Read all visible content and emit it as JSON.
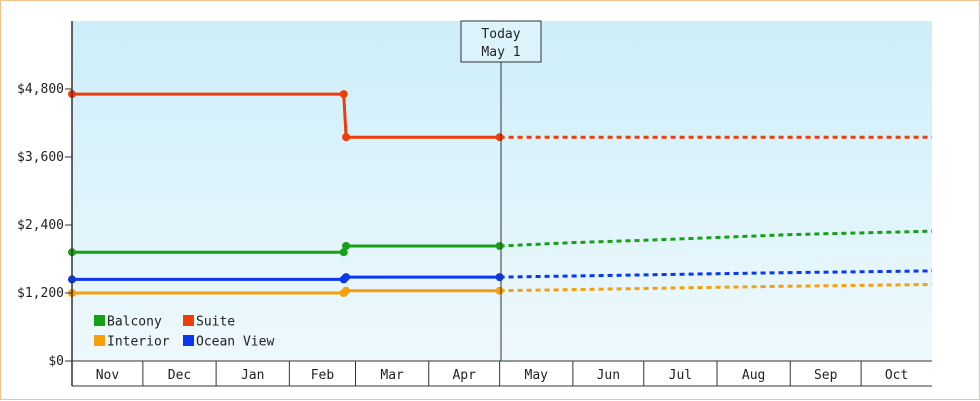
{
  "chart_data": {
    "type": "line",
    "title": "",
    "xlabel": "",
    "ylabel": "",
    "ylim": [
      0,
      6000
    ],
    "y_ticks": [
      {
        "value": 0,
        "label": "$0"
      },
      {
        "value": 1200,
        "label": "$1,200"
      },
      {
        "value": 2400,
        "label": "$2,400"
      },
      {
        "value": 3600,
        "label": "$3,600"
      },
      {
        "value": 4800,
        "label": "$4,800"
      }
    ],
    "x_range": [
      "2022-11-01",
      "2023-10-31"
    ],
    "months": [
      "Nov",
      "Dec",
      "Jan",
      "Feb",
      "Mar",
      "Apr",
      "May",
      "Jun",
      "Jul",
      "Aug",
      "Sep",
      "Oct"
    ],
    "today": {
      "date": "2023-05-01",
      "label_line1": "Today",
      "label_line2": "May 1"
    },
    "grid": false,
    "legend_position": "bottom-left",
    "series": [
      {
        "name": "Balcony",
        "color": "#16a016",
        "history": [
          [
            "2022-11-01",
            1920
          ],
          [
            "2023-02-24",
            1920
          ],
          [
            "2023-02-25",
            2030
          ],
          [
            "2023-05-01",
            2030
          ]
        ],
        "forecast": [
          [
            "2023-05-01",
            2030
          ],
          [
            "2023-06-01",
            2090
          ],
          [
            "2023-07-01",
            2130
          ],
          [
            "2023-08-01",
            2180
          ],
          [
            "2023-09-01",
            2230
          ],
          [
            "2023-10-31",
            2290
          ]
        ]
      },
      {
        "name": "Suite",
        "color": "#f03c0a",
        "history": [
          [
            "2022-11-01",
            4710
          ],
          [
            "2023-02-24",
            4710
          ],
          [
            "2023-02-25",
            3950
          ],
          [
            "2023-05-01",
            3950
          ]
        ],
        "forecast": [
          [
            "2023-05-01",
            3950
          ],
          [
            "2023-10-31",
            3950
          ]
        ]
      },
      {
        "name": "Interior",
        "color": "#f5a00a",
        "history": [
          [
            "2022-11-01",
            1200
          ],
          [
            "2023-02-24",
            1200
          ],
          [
            "2023-02-25",
            1240
          ],
          [
            "2023-05-01",
            1240
          ]
        ],
        "forecast": [
          [
            "2023-05-01",
            1240
          ],
          [
            "2023-06-01",
            1260
          ],
          [
            "2023-07-01",
            1280
          ],
          [
            "2023-08-01",
            1300
          ],
          [
            "2023-09-01",
            1320
          ],
          [
            "2023-10-31",
            1350
          ]
        ]
      },
      {
        "name": "Ocean View",
        "color": "#0a37f0",
        "history": [
          [
            "2022-11-01",
            1440
          ],
          [
            "2023-02-24",
            1440
          ],
          [
            "2023-02-25",
            1480
          ],
          [
            "2023-05-01",
            1480
          ]
        ],
        "forecast": [
          [
            "2023-05-01",
            1480
          ],
          [
            "2023-06-01",
            1500
          ],
          [
            "2023-07-01",
            1520
          ],
          [
            "2023-08-01",
            1540
          ],
          [
            "2023-09-01",
            1560
          ],
          [
            "2023-10-31",
            1590
          ]
        ]
      }
    ],
    "legend": [
      {
        "series": "Balcony"
      },
      {
        "series": "Suite"
      },
      {
        "series": "Interior"
      },
      {
        "series": "Ocean View"
      }
    ],
    "colors": {
      "plot_bg_top": "#cdeefa",
      "plot_bg_bottom": "#eef9fd",
      "axis": "#333333",
      "frame": "#f0c090"
    }
  }
}
